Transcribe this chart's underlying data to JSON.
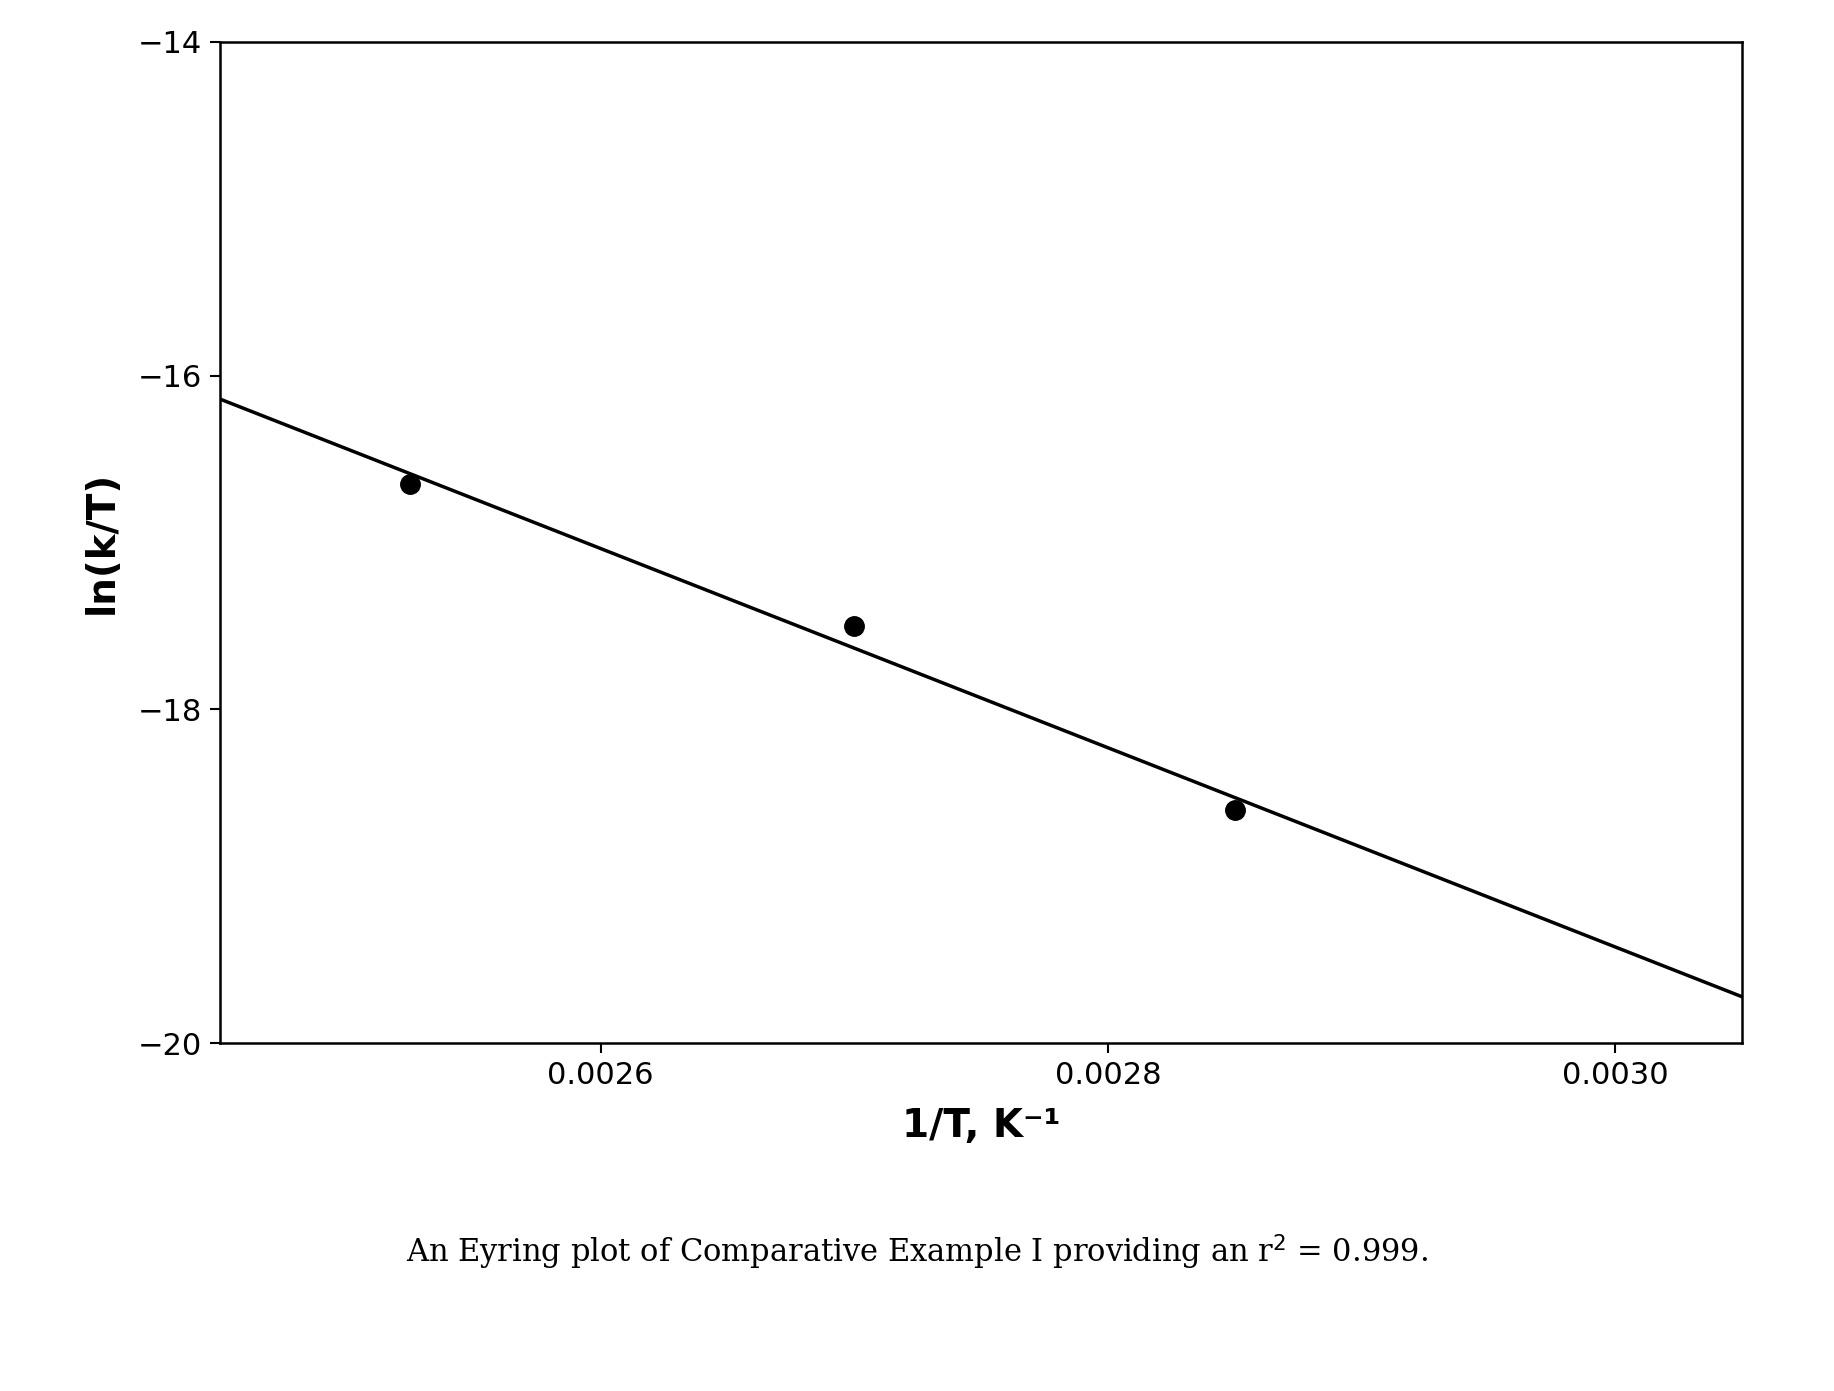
{
  "title": "",
  "xlabel": "1/T, K⁻¹",
  "ylabel": "ln(k/T)",
  "caption_parts": [
    "An Eyring plot of Comparative Example I providing an r",
    "2",
    " = 0.999."
  ],
  "xlim": [
    0.00245,
    0.00305
  ],
  "ylim": [
    -20,
    -14
  ],
  "xticks": [
    0.0026,
    0.0028,
    0.003
  ],
  "yticks": [
    -20,
    -18,
    -16,
    -14
  ],
  "data_x": [
    0.002525,
    0.0027,
    0.00285
  ],
  "data_y": [
    -16.65,
    -17.5,
    -18.6
  ],
  "line_color": "#000000",
  "marker_color": "#000000",
  "marker_size": 14,
  "line_width": 2.5,
  "background_color": "#ffffff",
  "axis_color": "#000000",
  "tick_fontsize": 22,
  "label_fontsize": 28,
  "caption_fontsize": 22,
  "fig_width": 18.34,
  "fig_height": 13.91,
  "dpi": 100
}
